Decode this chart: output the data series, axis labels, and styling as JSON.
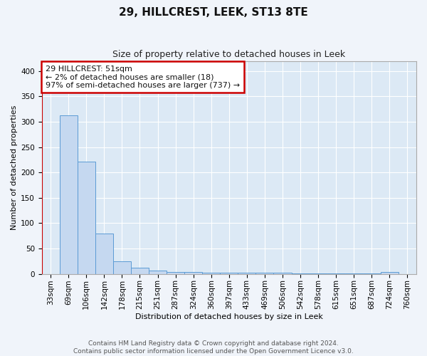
{
  "title": "29, HILLCREST, LEEK, ST13 8TE",
  "subtitle": "Size of property relative to detached houses in Leek",
  "xlabel": "Distribution of detached houses by size in Leek",
  "ylabel": "Number of detached properties",
  "categories": [
    "33sqm",
    "69sqm",
    "106sqm",
    "142sqm",
    "178sqm",
    "215sqm",
    "251sqm",
    "287sqm",
    "324sqm",
    "360sqm",
    "397sqm",
    "433sqm",
    "469sqm",
    "506sqm",
    "542sqm",
    "578sqm",
    "615sqm",
    "651sqm",
    "687sqm",
    "724sqm",
    "760sqm"
  ],
  "values": [
    0,
    312,
    222,
    80,
    25,
    12,
    6,
    4,
    4,
    3,
    3,
    2,
    2,
    2,
    1,
    1,
    1,
    1,
    1,
    4,
    0
  ],
  "bar_color": "#c5d8f0",
  "bar_edge_color": "#5b9bd5",
  "annotation_line1": "29 HILLCREST: 51sqm",
  "annotation_line2": "← 2% of detached houses are smaller (18)",
  "annotation_line3": "97% of semi-detached houses are larger (737) →",
  "annotation_box_color": "#ffffff",
  "annotation_box_edge_color": "#cc0000",
  "red_line_color": "#cc0000",
  "footer_text": "Contains HM Land Registry data © Crown copyright and database right 2024.\nContains public sector information licensed under the Open Government Licence v3.0.",
  "ylim": [
    0,
    420
  ],
  "plot_bg_color": "#dce9f5",
  "fig_bg_color": "#f0f4fa",
  "grid_color": "#ffffff",
  "title_fontsize": 11,
  "subtitle_fontsize": 9,
  "axis_label_fontsize": 8,
  "tick_fontsize": 7.5
}
